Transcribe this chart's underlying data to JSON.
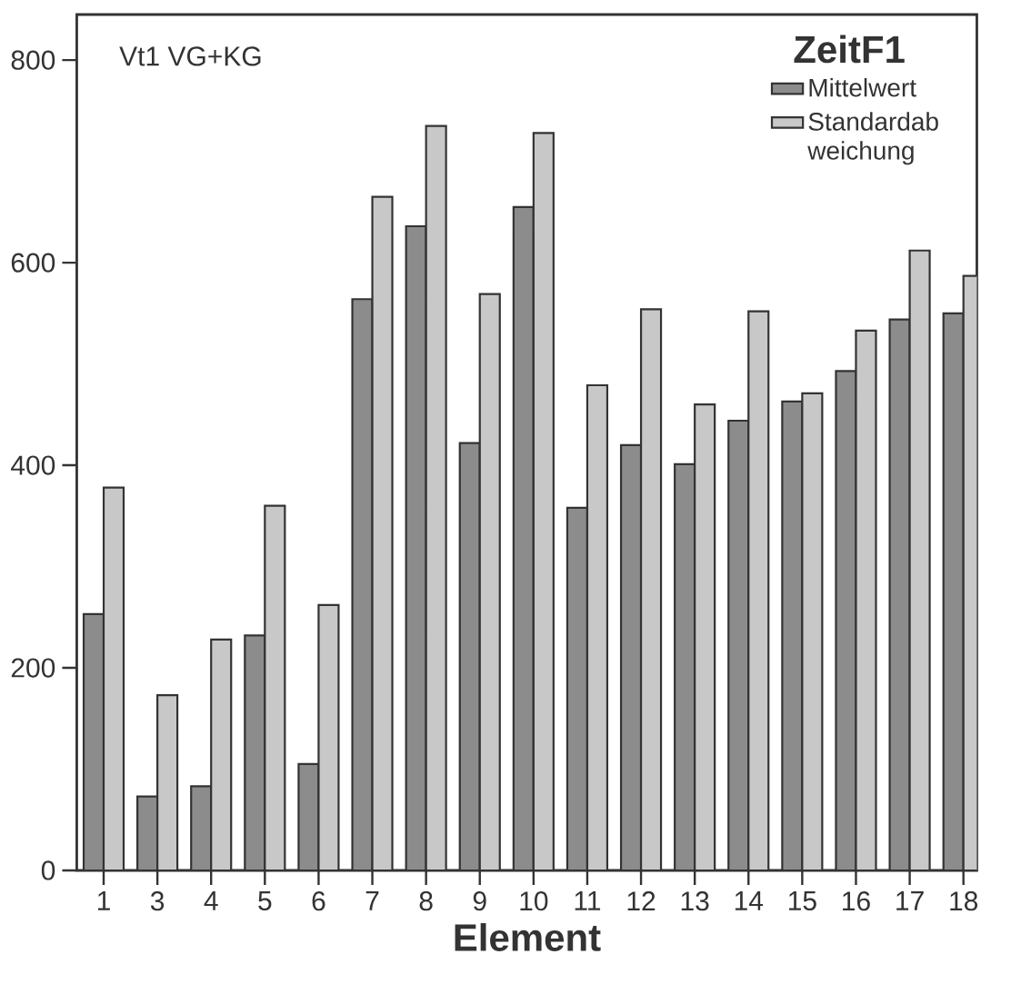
{
  "chart_data": {
    "type": "bar",
    "xlabel": "Element",
    "legend_title": "ZeitF1",
    "annotations": [
      "Vt1 VG+KG"
    ],
    "categories": [
      "1",
      "3",
      "4",
      "5",
      "6",
      "7",
      "8",
      "9",
      "10",
      "11",
      "12",
      "13",
      "14",
      "15",
      "16",
      "17",
      "18"
    ],
    "series": [
      {
        "name": "Mittelwert",
        "color": "#8c8c8c",
        "values": [
          253,
          73,
          83,
          232,
          105,
          564,
          636,
          422,
          655,
          358,
          420,
          401,
          444,
          463,
          493,
          544,
          550
        ]
      },
      {
        "name": "Standardab weichung",
        "color": "#c8c8c8",
        "values": [
          378,
          173,
          228,
          360,
          262,
          665,
          735,
          569,
          728,
          479,
          554,
          460,
          552,
          471,
          533,
          612,
          587
        ]
      }
    ],
    "ylim": [
      0,
      845
    ],
    "yticks": [
      0,
      200,
      400,
      600,
      800
    ],
    "legend": "top right"
  }
}
